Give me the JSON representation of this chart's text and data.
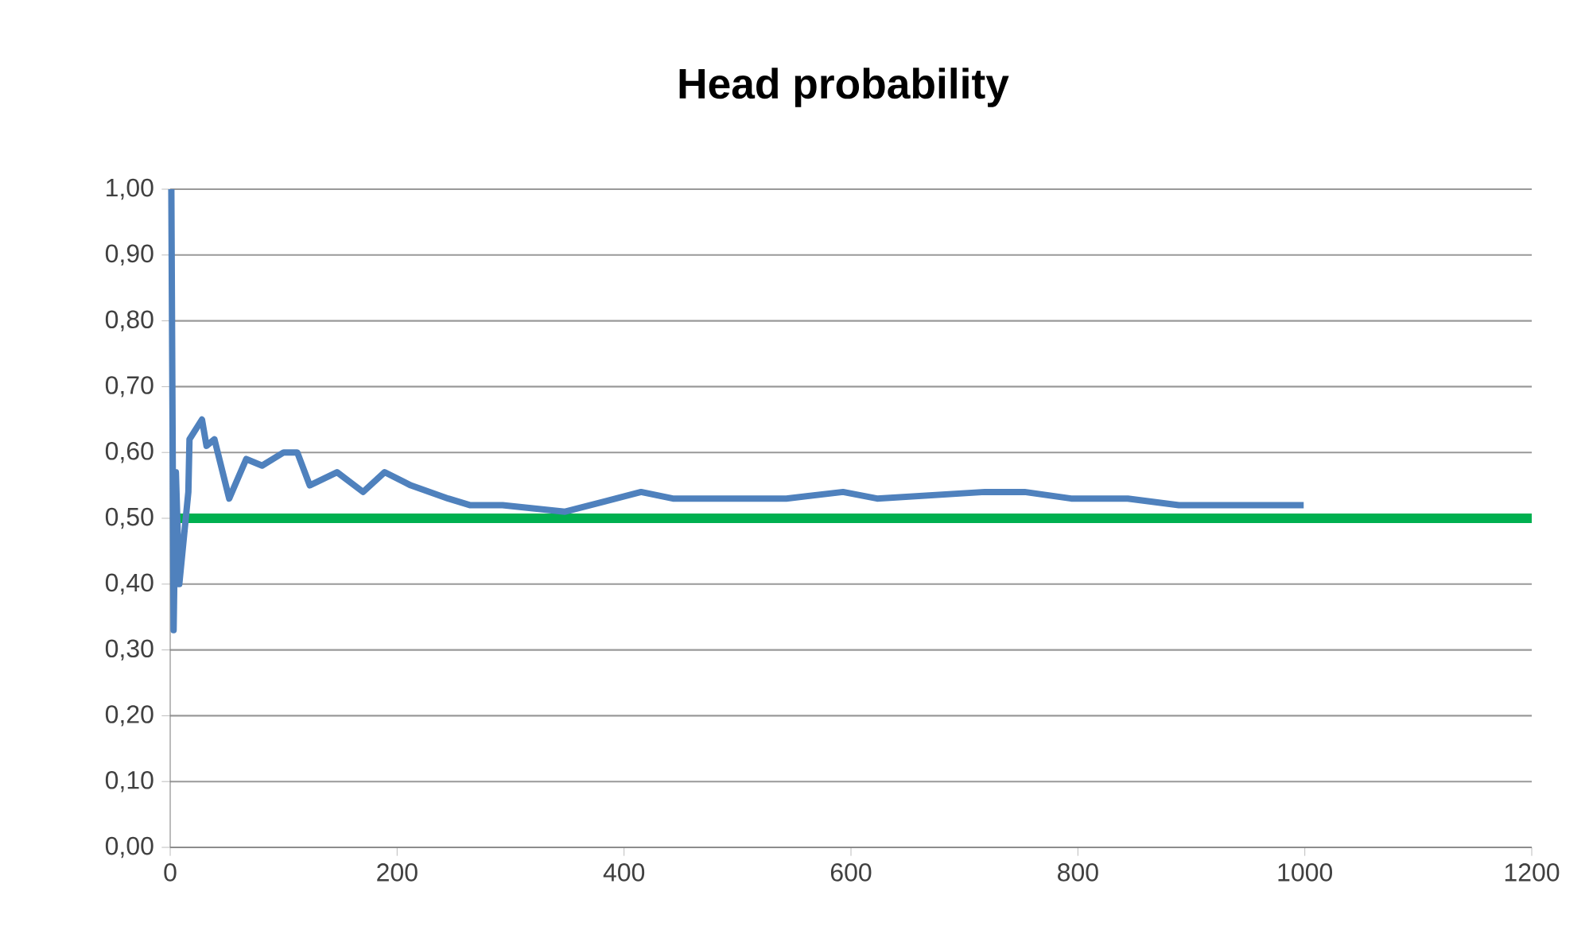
{
  "chart_data": {
    "type": "line",
    "title": "Head probability",
    "series": [
      {
        "color": "#4f81bd",
        "x": [
          1,
          3,
          5,
          8,
          16,
          17,
          28,
          32,
          39,
          52,
          67,
          81,
          100,
          112,
          123,
          147,
          170,
          189,
          212,
          245,
          264,
          293,
          348,
          415,
          443,
          523,
          543,
          593,
          623,
          718,
          753,
          794,
          844,
          889,
          944,
          999
        ],
        "values": [
          1.0,
          0.33,
          0.57,
          0.4,
          0.54,
          0.62,
          0.65,
          0.61,
          0.62,
          0.53,
          0.59,
          0.58,
          0.6,
          0.6,
          0.55,
          0.57,
          0.54,
          0.57,
          0.55,
          0.53,
          0.52,
          0.52,
          0.51,
          0.54,
          0.53,
          0.53,
          0.53,
          0.54,
          0.53,
          0.54,
          0.54,
          0.53,
          0.53,
          0.52,
          0.52,
          0.52
        ]
      }
    ],
    "ref_lines": [
      {
        "axis": "y",
        "value": 0.5,
        "color": "#00b050"
      }
    ],
    "xlim": [
      0,
      1200
    ],
    "xticks": [
      0,
      200,
      400,
      600,
      800,
      1000,
      1200
    ],
    "ylim": [
      0,
      1
    ],
    "yticks": [
      {
        "value": 0,
        "label": "0,00"
      },
      {
        "value": 0.1,
        "label": "0,10"
      },
      {
        "value": 0.2,
        "label": "0,20"
      },
      {
        "value": 0.3,
        "label": "0,30"
      },
      {
        "value": 0.4,
        "label": "0,40"
      },
      {
        "value": 0.5,
        "label": "0,50"
      },
      {
        "value": 0.6,
        "label": "0,60"
      },
      {
        "value": 0.7,
        "label": "0,70"
      },
      {
        "value": 0.8,
        "label": "0,80"
      },
      {
        "value": 0.9,
        "label": "0,90"
      },
      {
        "value": 1,
        "label": "1,00"
      }
    ],
    "grid": "y",
    "legend": false,
    "marker": "none",
    "line_style": "solid"
  }
}
